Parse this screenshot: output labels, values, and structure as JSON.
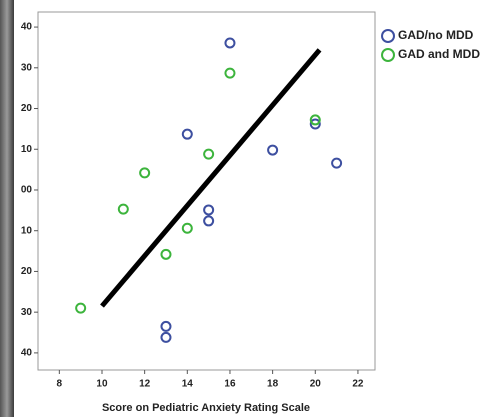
{
  "chart_data": {
    "type": "scatter",
    "x_label": "Score on Pediatric Anxiety Rating Scale",
    "xlim": [
      7.0,
      22.8
    ],
    "xticks": [
      8,
      10,
      12,
      14,
      16,
      18,
      20,
      22
    ],
    "ylim": [
      -44.2,
      43.7
    ],
    "yticks": [
      {
        "value": 40,
        "label": "40"
      },
      {
        "value": 30,
        "label": "30"
      },
      {
        "value": 20,
        "label": "20"
      },
      {
        "value": 10,
        "label": "10"
      },
      {
        "value": 0,
        "label": "00"
      },
      {
        "value": -10,
        "label": "10"
      },
      {
        "value": -20,
        "label": "20"
      },
      {
        "value": -30,
        "label": "30"
      },
      {
        "value": -40,
        "label": "40"
      }
    ],
    "series": [
      {
        "name": "GAD/no MDD",
        "color": "#3d4fa0",
        "x": [
          16,
          14,
          18,
          20,
          21,
          15,
          15,
          13,
          13
        ],
        "values": [
          36.1,
          13.7,
          9.8,
          16.2,
          6.6,
          -4.9,
          -7.6,
          -33.5,
          -36.2
        ]
      },
      {
        "name": "GAD and MDD",
        "color": "#3cb43c",
        "x": [
          16,
          20,
          15,
          12,
          11,
          14,
          13,
          9
        ],
        "values": [
          28.7,
          17.2,
          8.8,
          4.2,
          -4.7,
          -9.4,
          -15.8,
          -29.0
        ]
      }
    ],
    "fit_line": {
      "x": [
        10,
        20.2
      ],
      "y": [
        -28.5,
        34.4
      ],
      "color": "#000000"
    }
  }
}
